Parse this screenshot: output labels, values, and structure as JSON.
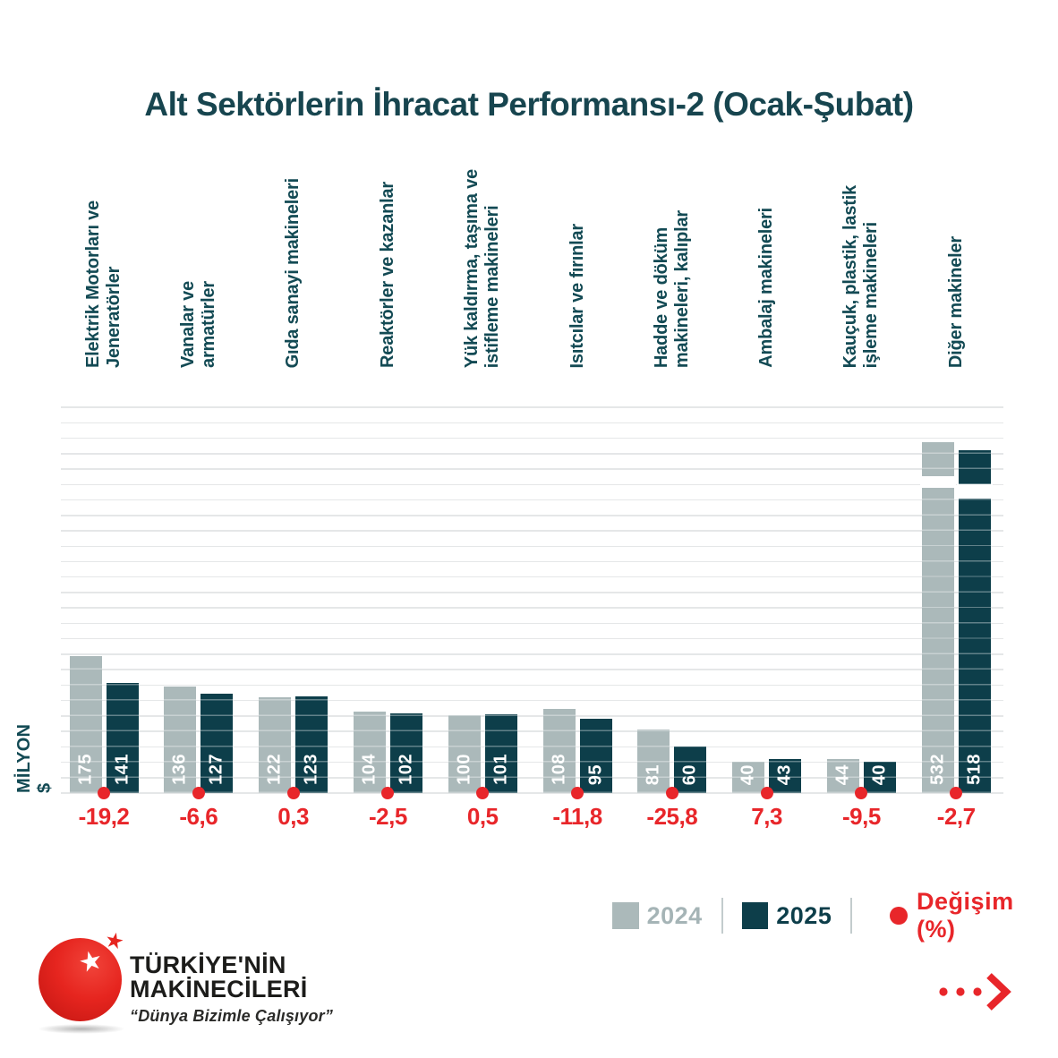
{
  "title": "Alt Sektörlerin İhracat Performansı-2 (Ocak-Şubat)",
  "y_axis_label": "MİLYON $",
  "legend": {
    "series_2024": "2024",
    "series_2025": "2025",
    "change_label": "Değişim (%)"
  },
  "logo": {
    "line1": "TÜRKİYE'NİN",
    "line2": "MAKİNECİLERİ",
    "tagline": "“Dünya Bizimle Çalışıyor”"
  },
  "colors": {
    "series_2024": "#abb9ba",
    "series_2025": "#0d3e4a",
    "accent_red": "#e8262a",
    "title_teal": "#17454f",
    "grid": "#e5e7e8"
  },
  "chart_data": {
    "type": "bar",
    "title": "Alt Sektörlerin İhracat Performansı-2 (Ocak-Şubat)",
    "ylabel": "MİLYON $",
    "unit": "milyon $",
    "grid": true,
    "legend_position": "bottom-right",
    "categories": [
      "Elektrik Motorları ve\nJeneratörler",
      "Vanalar ve\narmatürler",
      "Gıda sanayi makineleri",
      "Reaktörler ve kazanlar",
      "Yük kaldırma, taşıma ve\nistifleme makineleri",
      "Isıtcılar ve fırınlar",
      "Hadde ve döküm\nmakineleri, kalıplar",
      "Ambalaj makineleri",
      "Kauçuk, plastik, lastik\nişleme makineleri",
      "Diğer makineler"
    ],
    "series": [
      {
        "name": "2024",
        "color": "#abb9ba",
        "values": [
          175,
          136,
          122,
          104,
          100,
          108,
          81,
          40,
          44,
          532
        ]
      },
      {
        "name": "2025",
        "color": "#0d3e4a",
        "values": [
          141,
          127,
          123,
          102,
          101,
          95,
          60,
          43,
          40,
          518
        ]
      }
    ],
    "change_pct": [
      "-19,2",
      "-6,6",
      "0,3",
      "-2,5",
      "0,5",
      "-11,8",
      "-25,8",
      "7,3",
      "-9,5",
      "-2,7"
    ],
    "axis_break_on_values": [
      532,
      518
    ]
  }
}
